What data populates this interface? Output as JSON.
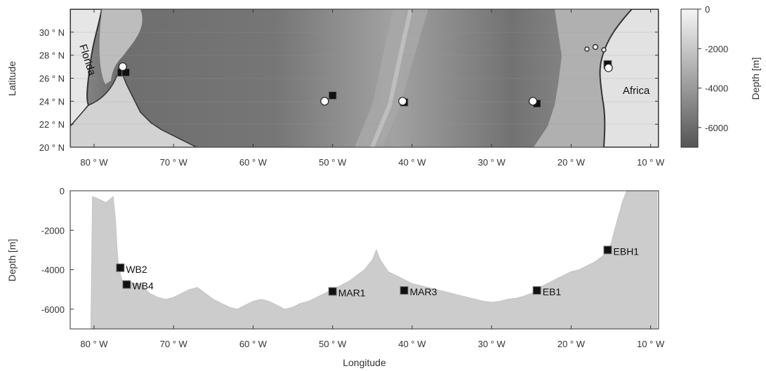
{
  "chart_data": [
    {
      "type": "heatmap",
      "title": "",
      "xlabel": "",
      "ylabel": "Latitude",
      "xlim": [
        -83,
        -9
      ],
      "ylim": [
        20,
        32
      ],
      "xticks": [
        -80,
        -70,
        -60,
        -50,
        -40,
        -30,
        -20,
        -10
      ],
      "xtick_labels": [
        "80 ° W",
        "70 ° W",
        "60 ° W",
        "50 ° W",
        "40 ° W",
        "30 ° W",
        "20 ° W",
        "10 ° W"
      ],
      "yticks": [
        20,
        22,
        24,
        26,
        28,
        30
      ],
      "ytick_labels": [
        "20 ° N",
        "22 ° N",
        "24 ° N",
        "26 ° N",
        "28 ° N",
        "30 ° N"
      ],
      "colorbar": {
        "label": "Depth [m]",
        "range": [
          -7000,
          0
        ],
        "ticks": [
          0,
          -2000,
          -4000,
          -6000
        ],
        "tick_labels": [
          "0",
          "-2000",
          "-4000",
          "-6000"
        ],
        "colors": [
          "#555555",
          "#f5f5f5"
        ]
      },
      "annotations": [
        "Florida",
        "Africa"
      ],
      "markers_square": [
        {
          "lon": -76.6,
          "lat": 26.5
        },
        {
          "lon": -76.0,
          "lat": 26.5
        },
        {
          "lon": -50.0,
          "lat": 24.5
        },
        {
          "lon": -41.0,
          "lat": 23.9
        },
        {
          "lon": -24.3,
          "lat": 23.8
        },
        {
          "lon": -15.4,
          "lat": 27.2
        }
      ],
      "markers_circle": [
        {
          "lon": -76.4,
          "lat": 27.0
        },
        {
          "lon": -51.0,
          "lat": 24.0
        },
        {
          "lon": -41.2,
          "lat": 24.0
        },
        {
          "lon": -24.8,
          "lat": 24.0
        },
        {
          "lon": -15.3,
          "lat": 26.9
        }
      ],
      "colors": {
        "coast": "#333333",
        "marker_fill": "#111111",
        "circle_fill": "#ffffff"
      }
    },
    {
      "type": "area",
      "title": "",
      "xlabel": "Longitude",
      "ylabel": "Depth [m]",
      "xlim": [
        -83,
        -9
      ],
      "ylim": [
        -7000,
        0
      ],
      "xticks": [
        -80,
        -70,
        -60,
        -50,
        -40,
        -30,
        -20,
        -10
      ],
      "xtick_labels": [
        "80 ° W",
        "70 ° W",
        "60 ° W",
        "50 ° W",
        "40 ° W",
        "30 ° W",
        "20 ° W",
        "10 ° W"
      ],
      "yticks": [
        0,
        -2000,
        -4000,
        -6000
      ],
      "ytick_labels": [
        "0",
        "-2000",
        "-4000",
        "-6000"
      ],
      "bathymetry": {
        "x": [
          -83,
          -80.4,
          -80.2,
          -79.5,
          -78.5,
          -77.6,
          -77.3,
          -77.1,
          -76.9,
          -76.5,
          -76.0,
          -75.5,
          -75.0,
          -74.2,
          -73,
          -72,
          -71,
          -70,
          -69,
          -68,
          -67,
          -66,
          -65,
          -64,
          -63,
          -62,
          -61,
          -60,
          -59,
          -58,
          -57,
          -56,
          -55,
          -54,
          -53,
          -52,
          -51,
          -50,
          -49,
          -48,
          -47,
          -46,
          -45,
          -44.5,
          -44,
          -43.5,
          -43,
          -42,
          -41,
          -40,
          -39,
          -38,
          -37,
          -36,
          -35,
          -34,
          -33,
          -32,
          -31,
          -30,
          -29,
          -28,
          -27,
          -26,
          -25,
          -24.3,
          -24,
          -23,
          -22,
          -21,
          -20,
          -19,
          -18,
          -17,
          -16,
          -15.4,
          -15,
          -14.2,
          -13.5,
          -13,
          -12,
          -11,
          -10,
          -9.2
        ],
        "y": [
          -7000,
          -7000,
          -300,
          -400,
          -600,
          -300,
          -1500,
          -3000,
          -3900,
          -4500,
          -4700,
          -4600,
          -4700,
          -4700,
          -5200,
          -5400,
          -5500,
          -5400,
          -5200,
          -5000,
          -4900,
          -5200,
          -5500,
          -5700,
          -5900,
          -6000,
          -5800,
          -5600,
          -5500,
          -5600,
          -5800,
          -6000,
          -5900,
          -5700,
          -5600,
          -5400,
          -5200,
          -5000,
          -4800,
          -4600,
          -4300,
          -4000,
          -3500,
          -3000,
          -3500,
          -3800,
          -4100,
          -4300,
          -4500,
          -4700,
          -4800,
          -4900,
          -5000,
          -5100,
          -5200,
          -5300,
          -5400,
          -5500,
          -5600,
          -5650,
          -5600,
          -5500,
          -5450,
          -5350,
          -5200,
          -5050,
          -4900,
          -4700,
          -4500,
          -4300,
          -4100,
          -4000,
          -3800,
          -3600,
          -3300,
          -3000,
          -2700,
          -1500,
          -500,
          0,
          0,
          0,
          0,
          0
        ],
        "color": "#cccccc"
      },
      "stations": [
        {
          "label": "WB2",
          "lon": -76.7,
          "depth": -3900
        },
        {
          "label": "WB4",
          "lon": -75.9,
          "depth": -4750
        },
        {
          "label": "MAR1",
          "lon": -50.0,
          "depth": -5100
        },
        {
          "label": "MAR3",
          "lon": -41.0,
          "depth": -5050
        },
        {
          "label": "EB1",
          "lon": -24.3,
          "depth": -5050
        },
        {
          "label": "EBH1",
          "lon": -15.4,
          "depth": -3000
        }
      ],
      "colors": {
        "station_marker": "#111111"
      }
    }
  ]
}
